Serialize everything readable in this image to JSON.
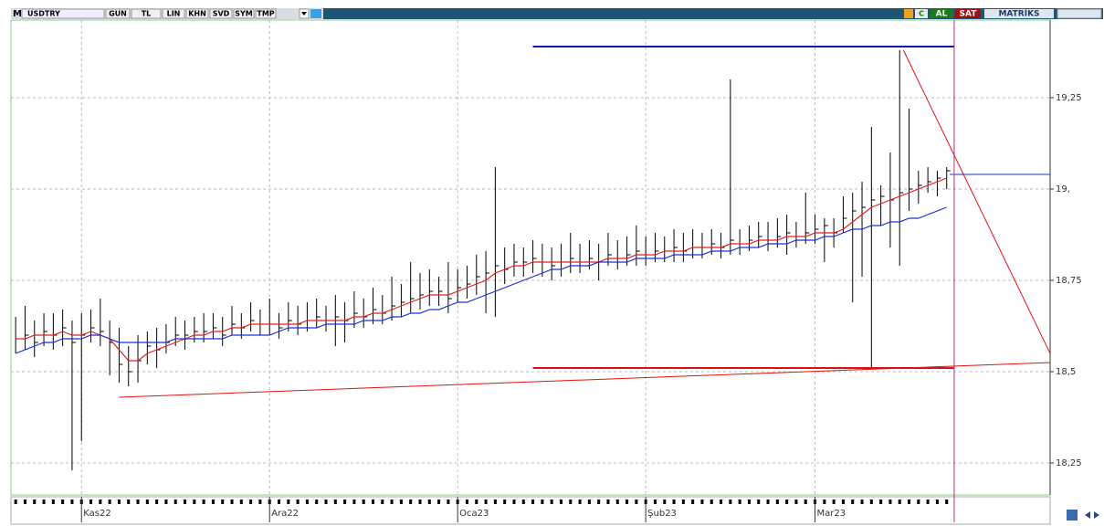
{
  "toolbar": {
    "buttons": [
      "GUN",
      "TL",
      "LIN",
      "KHN",
      "SVD",
      "SYM",
      "TMP"
    ],
    "symbol": "USDTRY",
    "logo": "M",
    "c": "C",
    "buy": "AL",
    "sell": "SAT",
    "brand": "MATRİKS"
  },
  "chart_data": {
    "type": "ohlc",
    "categories": [
      null,
      null,
      null,
      null,
      null,
      null,
      null,
      "Kas22",
      null,
      null,
      null,
      null,
      null,
      null,
      null,
      null,
      null,
      null,
      null,
      null,
      null,
      null,
      null,
      null,
      null,
      null,
      null,
      "Ara22",
      null,
      null,
      null,
      null,
      null,
      null,
      null,
      null,
      null,
      null,
      null,
      null,
      null,
      null,
      null,
      null,
      null,
      null,
      null,
      "Oca23",
      null,
      null,
      null,
      null,
      null,
      null,
      null,
      null,
      null,
      null,
      null,
      null,
      null,
      null,
      null,
      null,
      null,
      null,
      null,
      "Şub23",
      null,
      null,
      null,
      null,
      null,
      null,
      null,
      null,
      null,
      null,
      null,
      null,
      null,
      null,
      null,
      null,
      null,
      "Mar23",
      null,
      null,
      null,
      null,
      null,
      null,
      null,
      null,
      null,
      null,
      null,
      null,
      null,
      null
    ],
    "high": [
      18.65,
      18.68,
      18.64,
      18.66,
      18.66,
      18.67,
      18.64,
      18.66,
      18.67,
      18.7,
      18.64,
      18.62,
      18.57,
      18.6,
      18.61,
      18.62,
      18.63,
      18.65,
      18.64,
      18.65,
      18.66,
      18.66,
      18.65,
      18.68,
      18.66,
      18.69,
      18.67,
      18.7,
      18.66,
      18.69,
      18.68,
      18.69,
      18.7,
      18.68,
      18.71,
      18.69,
      18.72,
      18.7,
      18.73,
      18.71,
      18.76,
      18.74,
      18.8,
      18.77,
      18.78,
      18.76,
      18.8,
      18.78,
      18.79,
      18.82,
      18.83,
      19.06,
      18.84,
      18.85,
      18.84,
      18.86,
      18.85,
      18.84,
      18.85,
      18.88,
      18.85,
      18.86,
      18.85,
      18.88,
      18.86,
      18.87,
      18.9,
      18.87,
      18.88,
      18.87,
      18.89,
      18.88,
      18.89,
      18.88,
      18.89,
      18.88,
      19.3,
      18.89,
      18.9,
      18.91,
      18.91,
      18.92,
      18.93,
      18.91,
      18.99,
      18.93,
      18.92,
      18.92,
      18.98,
      18.99,
      19.02,
      19.17,
      19.01,
      19.1,
      19.38,
      19.22,
      19.05,
      19.06,
      19.05,
      19.06
    ],
    "low": [
      18.55,
      18.56,
      18.54,
      18.57,
      18.56,
      18.57,
      18.23,
      18.31,
      18.58,
      18.57,
      18.49,
      18.47,
      18.46,
      18.47,
      18.52,
      18.51,
      18.55,
      18.57,
      18.56,
      18.58,
      18.58,
      18.59,
      18.57,
      18.6,
      18.59,
      18.61,
      18.6,
      18.6,
      18.59,
      18.61,
      18.6,
      18.61,
      18.62,
      18.61,
      18.57,
      18.58,
      18.62,
      18.62,
      18.63,
      18.63,
      18.64,
      18.65,
      18.66,
      18.67,
      18.68,
      18.68,
      18.66,
      18.69,
      18.7,
      18.71,
      18.66,
      18.65,
      18.74,
      18.76,
      18.76,
      18.77,
      18.76,
      18.75,
      18.76,
      18.77,
      18.77,
      18.78,
      18.75,
      18.79,
      18.78,
      18.79,
      18.79,
      18.79,
      18.8,
      18.8,
      18.8,
      18.8,
      18.81,
      18.81,
      18.82,
      18.81,
      18.82,
      18.82,
      18.83,
      18.84,
      18.83,
      18.84,
      18.82,
      18.84,
      18.85,
      18.85,
      18.8,
      18.84,
      18.88,
      18.69,
      18.76,
      18.51,
      18.9,
      18.84,
      18.79,
      18.94,
      18.96,
      18.99,
      18.98,
      19.0
    ],
    "close": [
      18.59,
      18.6,
      18.58,
      18.61,
      18.6,
      18.62,
      18.58,
      18.6,
      18.62,
      18.61,
      18.58,
      18.52,
      18.5,
      18.53,
      18.57,
      18.56,
      18.58,
      18.6,
      18.6,
      18.61,
      18.61,
      18.62,
      18.6,
      18.63,
      18.62,
      18.64,
      18.63,
      18.63,
      18.62,
      18.64,
      18.63,
      18.64,
      18.65,
      18.64,
      18.65,
      18.64,
      18.66,
      18.65,
      18.67,
      18.66,
      18.68,
      18.69,
      18.7,
      18.71,
      18.72,
      18.72,
      18.7,
      18.73,
      18.74,
      18.76,
      18.77,
      18.79,
      18.78,
      18.8,
      18.8,
      18.81,
      18.8,
      18.79,
      18.8,
      18.81,
      18.8,
      18.81,
      18.8,
      18.82,
      18.81,
      18.82,
      18.83,
      18.82,
      18.83,
      18.83,
      18.84,
      18.83,
      18.84,
      18.84,
      18.85,
      18.84,
      18.86,
      18.85,
      18.86,
      18.87,
      18.86,
      18.87,
      18.88,
      18.87,
      18.88,
      18.89,
      18.9,
      18.88,
      18.92,
      18.94,
      18.95,
      18.97,
      18.98,
      18.97,
      18.99,
      19.0,
      19.01,
      19.02,
      19.03,
      19.05
    ],
    "series": [
      {
        "color": "#e02020",
        "values": [
          18.59,
          18.59,
          18.6,
          18.6,
          18.6,
          18.61,
          18.6,
          18.6,
          18.61,
          18.6,
          18.59,
          18.56,
          18.53,
          18.53,
          18.55,
          18.56,
          18.57,
          18.58,
          18.59,
          18.6,
          18.6,
          18.61,
          18.61,
          18.62,
          18.62,
          18.63,
          18.63,
          18.63,
          18.63,
          18.63,
          18.63,
          18.64,
          18.64,
          18.64,
          18.64,
          18.64,
          18.65,
          18.65,
          18.66,
          18.66,
          18.67,
          18.68,
          18.69,
          18.7,
          18.71,
          18.71,
          18.71,
          18.72,
          18.73,
          18.74,
          18.75,
          18.77,
          18.78,
          18.79,
          18.79,
          18.8,
          18.8,
          18.8,
          18.8,
          18.8,
          18.8,
          18.8,
          18.8,
          18.81,
          18.81,
          18.81,
          18.82,
          18.82,
          18.82,
          18.83,
          18.83,
          18.83,
          18.84,
          18.84,
          18.84,
          18.84,
          18.85,
          18.85,
          18.85,
          18.86,
          18.86,
          18.86,
          18.87,
          18.87,
          18.87,
          18.88,
          18.88,
          18.88,
          18.89,
          18.91,
          18.93,
          18.95,
          18.96,
          18.97,
          18.98,
          18.99,
          19.0,
          19.01,
          19.02,
          19.03
        ]
      },
      {
        "color": "#2030d0",
        "values": [
          18.55,
          18.56,
          18.57,
          18.58,
          18.58,
          18.59,
          18.59,
          18.59,
          18.6,
          18.6,
          18.59,
          18.58,
          18.58,
          18.58,
          18.58,
          18.58,
          18.58,
          18.59,
          18.59,
          18.59,
          18.59,
          18.59,
          18.59,
          18.6,
          18.6,
          18.6,
          18.6,
          18.6,
          18.61,
          18.62,
          18.62,
          18.62,
          18.62,
          18.63,
          18.63,
          18.63,
          18.63,
          18.64,
          18.64,
          18.64,
          18.65,
          18.65,
          18.66,
          18.66,
          18.67,
          18.67,
          18.68,
          18.69,
          18.69,
          18.7,
          18.71,
          18.72,
          18.73,
          18.74,
          18.75,
          18.76,
          18.77,
          18.78,
          18.78,
          18.79,
          18.79,
          18.79,
          18.8,
          18.8,
          18.8,
          18.8,
          18.81,
          18.81,
          18.81,
          18.81,
          18.82,
          18.82,
          18.82,
          18.82,
          18.83,
          18.83,
          18.83,
          18.84,
          18.84,
          18.84,
          18.85,
          18.85,
          18.85,
          18.86,
          18.86,
          18.86,
          18.87,
          18.87,
          18.88,
          18.89,
          18.89,
          18.9,
          18.9,
          18.91,
          18.91,
          18.92,
          18.92,
          18.93,
          18.94,
          18.95
        ]
      }
    ],
    "lines": [
      {
        "color": "#1010b0",
        "width": 2,
        "x": [
          55,
          99.8
        ],
        "y": [
          19.39,
          19.39
        ]
      },
      {
        "color": "#e01010",
        "width": 2,
        "x": [
          55,
          99.8
        ],
        "y": [
          18.51,
          18.51
        ]
      },
      {
        "color": "#e01010",
        "width": 1,
        "x": [
          11,
          110
        ],
        "y": [
          18.43,
          18.525
        ]
      },
      {
        "color": "#e01010",
        "width": 1,
        "x": [
          94.4,
          110
        ],
        "y": [
          19.38,
          18.55
        ]
      },
      {
        "color": "#2030d0",
        "width": 1,
        "x": [
          99.3,
          110
        ],
        "y": [
          19.04,
          19.04
        ]
      }
    ],
    "vline": {
      "x": 99.8,
      "color": "#b03080"
    },
    "bar_color": "#000000",
    "xlim": [
      -0.5,
      110
    ],
    "ylim": [
      18.1625,
      19.4625
    ],
    "yticks": [
      {
        "value": 18.25,
        "label": "18,25"
      },
      {
        "value": 18.5,
        "label": "18,5"
      },
      {
        "value": 18.75,
        "label": "18,75"
      },
      {
        "value": 19,
        "label": "19,"
      },
      {
        "value": 19.25,
        "label": "19,25"
      }
    ],
    "grid": true
  }
}
